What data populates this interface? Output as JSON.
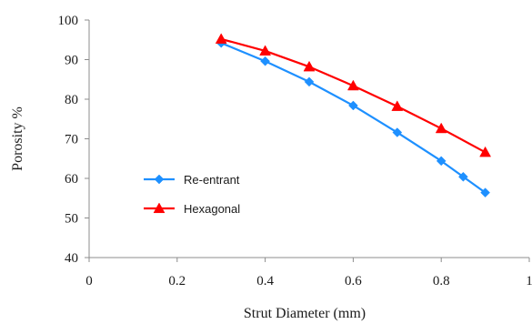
{
  "chart_data": {
    "type": "line",
    "title": "",
    "xlabel": "Strut Diameter  (mm)",
    "ylabel": "Porosity %",
    "xlim": [
      0,
      1
    ],
    "ylim": [
      40,
      100
    ],
    "x_ticks": [
      0,
      0.2,
      0.4,
      0.6,
      0.8,
      1
    ],
    "x_tick_labels": [
      "0",
      "0.2",
      "0.4",
      "0.6",
      "0.8",
      "1"
    ],
    "y_ticks": [
      40,
      50,
      60,
      70,
      80,
      90,
      100
    ],
    "y_tick_labels": [
      "40",
      "50",
      "60",
      "70",
      "80",
      "90",
      "100"
    ],
    "grid": false,
    "legend_position": "center-left",
    "series": [
      {
        "name": "Re-entrant",
        "color": "#1E90FF",
        "marker": "diamond",
        "x": [
          0.3,
          0.4,
          0.5,
          0.6,
          0.7,
          0.8,
          0.85,
          0.9
        ],
        "y": [
          94.2,
          89.6,
          84.4,
          78.4,
          71.6,
          64.4,
          60.4,
          56.4
        ]
      },
      {
        "name": "Hexagonal",
        "color": "#FF0000",
        "marker": "triangle",
        "x": [
          0.3,
          0.4,
          0.5,
          0.6,
          0.7,
          0.8,
          0.9
        ],
        "y": [
          95.2,
          92.2,
          88.2,
          83.4,
          78.2,
          72.6,
          66.6
        ]
      }
    ]
  }
}
